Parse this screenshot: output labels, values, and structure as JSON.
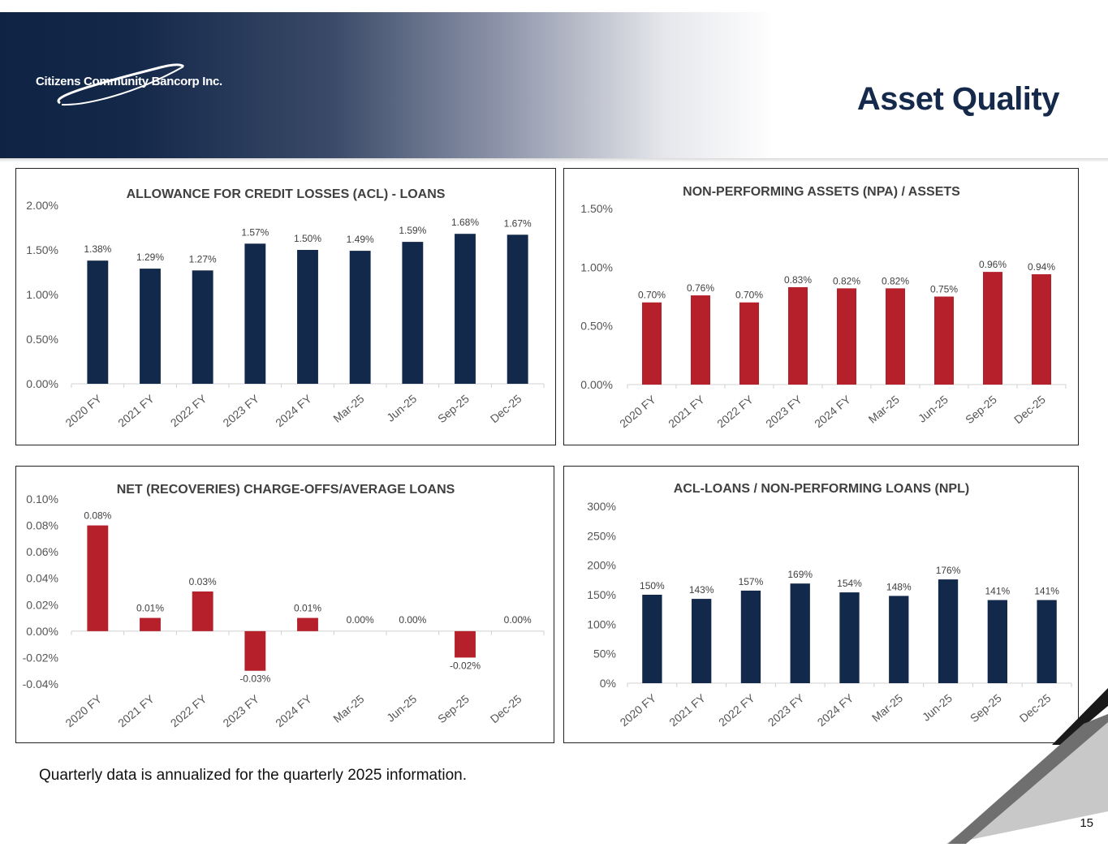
{
  "header": {
    "logo_text": "Citizens Community Bancorp Inc.",
    "title": "Asset Quality"
  },
  "footnote": "Quarterly data is annualized for the quarterly 2025 information.",
  "page_number": "15",
  "colors": {
    "navy": "#13294b",
    "red": "#b5202a"
  },
  "chart_data": [
    {
      "id": "acl",
      "type": "bar",
      "title": "ALLOWANCE FOR CREDIT LOSSES (ACL) - LOANS",
      "categories": [
        "2020 FY",
        "2021 FY",
        "2022 FY",
        "2023 FY",
        "2024 FY",
        "Mar-25",
        "Jun-25",
        "Sep-25",
        "Dec-25"
      ],
      "values": [
        1.38,
        1.29,
        1.27,
        1.57,
        1.5,
        1.49,
        1.59,
        1.68,
        1.67
      ],
      "value_labels": [
        "1.38%",
        "1.29%",
        "1.27%",
        "1.57%",
        "1.50%",
        "1.49%",
        "1.59%",
        "1.68%",
        "1.67%"
      ],
      "ylim": [
        0,
        2.0
      ],
      "yticks": [
        0,
        0.5,
        1.0,
        1.5,
        2.0
      ],
      "ytick_labels": [
        "0.00%",
        "0.50%",
        "1.00%",
        "1.50%",
        "2.00%"
      ],
      "color": "#13294b",
      "grid": false
    },
    {
      "id": "npa",
      "type": "bar",
      "title": "NON-PERFORMING ASSETS (NPA)  / ASSETS",
      "categories": [
        "2020 FY",
        "2021 FY",
        "2022 FY",
        "2023 FY",
        "2024 FY",
        "Mar-25",
        "Jun-25",
        "Sep-25",
        "Dec-25"
      ],
      "values": [
        0.7,
        0.76,
        0.7,
        0.83,
        0.82,
        0.82,
        0.75,
        0.96,
        0.94
      ],
      "value_labels": [
        "0.70%",
        "0.76%",
        "0.70%",
        "0.83%",
        "0.82%",
        "0.82%",
        "0.75%",
        "0.96%",
        "0.94%"
      ],
      "ylim": [
        0,
        1.5
      ],
      "yticks": [
        0,
        0.5,
        1.0,
        1.5
      ],
      "ytick_labels": [
        "0.00%",
        "0.50%",
        "1.00%",
        "1.50%"
      ],
      "color": "#b5202a",
      "grid": false
    },
    {
      "id": "nco",
      "type": "bar",
      "title": "NET (RECOVERIES) CHARGE-OFFS/AVERAGE LOANS",
      "categories": [
        "2020 FY",
        "2021 FY",
        "2022 FY",
        "2023 FY",
        "2024 FY",
        "Mar-25",
        "Jun-25",
        "Sep-25",
        "Dec-25"
      ],
      "values": [
        0.08,
        0.01,
        0.03,
        -0.03,
        0.01,
        0.0,
        0.0,
        -0.02,
        0.0
      ],
      "value_labels": [
        "0.08%",
        "0.01%",
        "0.03%",
        "-0.03%",
        "0.01%",
        "0.00%",
        "0.00%",
        "-0.02%",
        "0.00%"
      ],
      "ylim": [
        -0.04,
        0.1
      ],
      "yticks": [
        -0.04,
        -0.02,
        0,
        0.02,
        0.04,
        0.06,
        0.08,
        0.1
      ],
      "ytick_labels": [
        "-0.04%",
        "-0.02%",
        "0.00%",
        "0.02%",
        "0.04%",
        "0.06%",
        "0.08%",
        "0.10%"
      ],
      "color": "#b5202a",
      "grid": false
    },
    {
      "id": "npl",
      "type": "bar",
      "title": "ACL-LOANS / NON-PERFORMING LOANS (NPL)",
      "categories": [
        "2020 FY",
        "2021 FY",
        "2022 FY",
        "2023 FY",
        "2024 FY",
        "Mar-25",
        "Jun-25",
        "Sep-25",
        "Dec-25"
      ],
      "values": [
        150,
        143,
        157,
        169,
        154,
        148,
        176,
        141,
        141
      ],
      "value_labels": [
        "150%",
        "143%",
        "157%",
        "169%",
        "154%",
        "148%",
        "176%",
        "141%",
        "141%"
      ],
      "ylim": [
        0,
        300
      ],
      "yticks": [
        0,
        50,
        100,
        150,
        200,
        250,
        300
      ],
      "ytick_labels": [
        "0%",
        "50%",
        "100%",
        "150%",
        "200%",
        "250%",
        "300%"
      ],
      "color": "#13294b",
      "grid": false
    }
  ]
}
